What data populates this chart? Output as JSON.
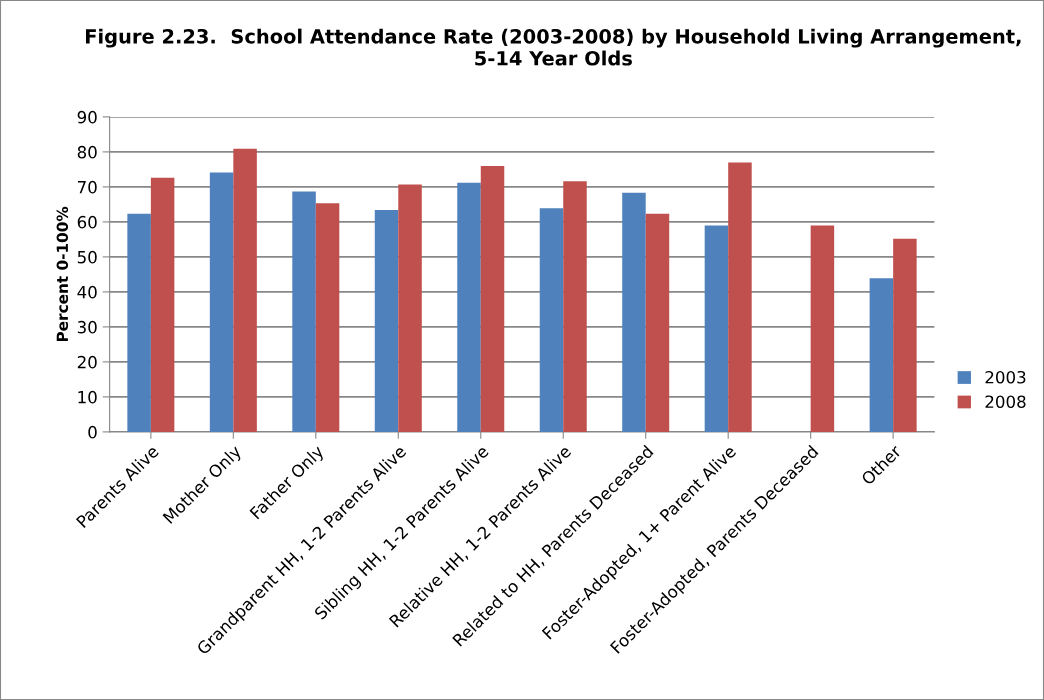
{
  "chart_data": {
    "type": "bar",
    "title": "Figure 2.23.  School Attendance Rate (2003-2008) by Household Living Arrangement, 5-14 Year Olds",
    "ylabel": "Percent 0-100%",
    "categories": [
      "Parents Alive",
      "Mother Only",
      "Father Only",
      "Grandparent HH, 1-2 Parents Alive",
      "Sibling HH, 1-2 Parents Alive",
      "Relative HH, 1-2 Parents Alive",
      "Related to HH, Parents Deceased",
      "Foster-Adopted, 1+ Parent Alive",
      "Foster-Adopted, Parents Deceased",
      "Other"
    ],
    "series": [
      {
        "name": "2003",
        "color": "#4f81bd",
        "values": [
          62.3,
          74.1,
          68.7,
          63.4,
          71.2,
          63.9,
          68.3,
          59.0,
          null,
          43.9
        ]
      },
      {
        "name": "2008",
        "color": "#c0504d",
        "values": [
          72.6,
          80.9,
          65.3,
          70.7,
          76.0,
          71.6,
          62.3,
          77.0,
          59.0,
          55.2
        ]
      }
    ],
    "ylim": [
      0,
      90
    ],
    "yticks": [
      0,
      10,
      20,
      30,
      40,
      50,
      60,
      70,
      80,
      90
    ],
    "grid": "y",
    "legend": "right"
  }
}
